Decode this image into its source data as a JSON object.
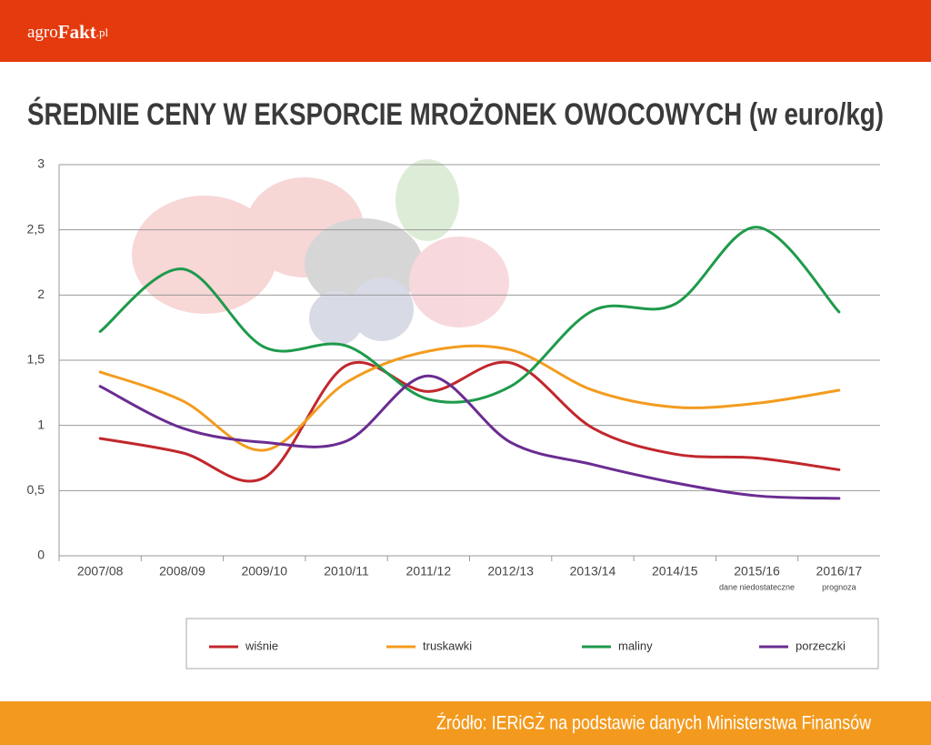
{
  "logo": {
    "main": "agro",
    "bold": "Fakt",
    "suffix": ".pl"
  },
  "source": "Źródło: IERiGŻ na podstawie danych Ministerstwa Finansów",
  "chart_data": {
    "type": "line",
    "title": "ŚREDNIE CENY W EKSPORCIE MROŻONEK OWOCOWYCH (w euro/kg)",
    "categories": [
      "2007/08",
      "2008/09",
      "2009/10",
      "2010/11",
      "2011/12",
      "2012/13",
      "2013/14",
      "2014/15",
      "2015/16",
      "2016/17"
    ],
    "category_notes": [
      null,
      null,
      null,
      null,
      null,
      null,
      null,
      null,
      "dane niedostateczne",
      "prognoza"
    ],
    "ylim": [
      0,
      3
    ],
    "yticks": [
      0,
      {
        "value": 0.5,
        "label": "0,5"
      },
      1,
      {
        "value": 1.5,
        "label": "1,5"
      },
      2,
      {
        "value": 2.5,
        "label": "2,5"
      },
      3
    ],
    "grid": true,
    "smooth": true,
    "series": [
      {
        "name": "wiśnie",
        "color": "#c1272d",
        "values": [
          0.9,
          0.79,
          0.6,
          1.46,
          1.26,
          1.48,
          0.98,
          0.78,
          0.75,
          0.66
        ]
      },
      {
        "name": "truskawki",
        "color": "#f39c1f",
        "values": [
          1.41,
          1.19,
          0.81,
          1.33,
          1.57,
          1.58,
          1.27,
          1.14,
          1.17,
          1.27
        ]
      },
      {
        "name": "maliny",
        "color": "#1e9a4b",
        "values": [
          1.72,
          2.2,
          1.6,
          1.61,
          1.2,
          1.3,
          1.88,
          1.93,
          2.52,
          1.87
        ]
      },
      {
        "name": "porzeczki",
        "color": "#6a2c91",
        "values": [
          1.3,
          0.98,
          0.87,
          0.88,
          1.38,
          0.87,
          0.7,
          0.56,
          0.46,
          0.44
        ]
      }
    ]
  }
}
